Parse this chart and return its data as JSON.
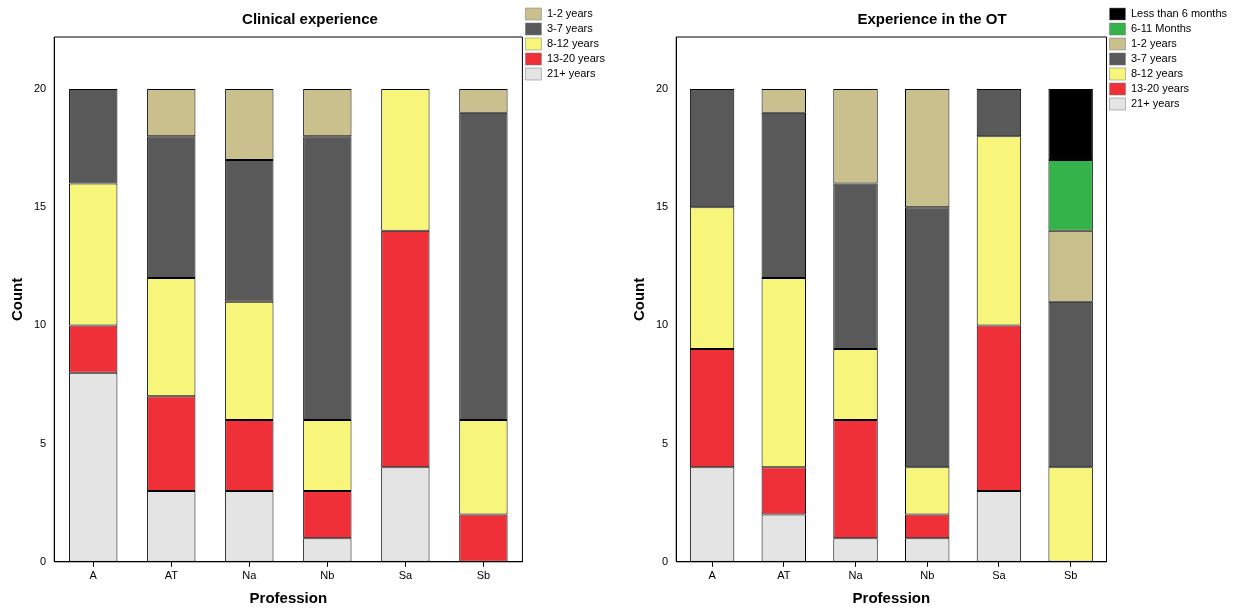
{
  "chart_data": [
    {
      "type": "bar",
      "title": "Clinical experience",
      "xlabel": "Profession",
      "ylabel": "Count",
      "stacked": true,
      "legend": "top right",
      "grid": false,
      "categories": [
        "A",
        "AT",
        "Na",
        "Nb",
        "Sa",
        "Sb"
      ],
      "ylim": [
        0,
        22.2
      ],
      "yticks": [
        0,
        5,
        10,
        15,
        20
      ],
      "series": [
        {
          "name": "21+ years",
          "color": "#e4e4e4",
          "values": [
            8,
            3,
            3,
            1,
            4,
            0
          ]
        },
        {
          "name": "13-20 years",
          "color": "#ef3038",
          "values": [
            2,
            4,
            3,
            2,
            10,
            2
          ]
        },
        {
          "name": "8-12 years",
          "color": "#f8f67a",
          "values": [
            6,
            5,
            5,
            3,
            6,
            4
          ]
        },
        {
          "name": "3-7 years",
          "color": "#595959",
          "values": [
            4,
            6,
            6,
            12,
            0,
            13
          ]
        },
        {
          "name": "1-2 years",
          "color": "#c9c08e",
          "values": [
            0,
            2,
            3,
            2,
            0,
            1
          ]
        }
      ]
    },
    {
      "type": "bar",
      "title": "Experience in the OT",
      "xlabel": "Profession",
      "ylabel": "Count",
      "stacked": true,
      "legend": "top right",
      "grid": false,
      "categories": [
        "A",
        "AT",
        "Na",
        "Nb",
        "Sa",
        "Sb"
      ],
      "ylim": [
        0,
        22.2
      ],
      "yticks": [
        0,
        5,
        10,
        15,
        20
      ],
      "series": [
        {
          "name": "21+ years",
          "color": "#e4e4e4",
          "values": [
            4,
            2,
            1,
            1,
            3,
            0
          ]
        },
        {
          "name": "13-20 years",
          "color": "#ef3038",
          "values": [
            5,
            2,
            5,
            1,
            7,
            0
          ]
        },
        {
          "name": "8-12 years",
          "color": "#f8f67a",
          "values": [
            6,
            8,
            3,
            2,
            8,
            4
          ]
        },
        {
          "name": "3-7 years",
          "color": "#595959",
          "values": [
            5,
            7,
            7,
            11,
            2,
            7
          ]
        },
        {
          "name": "1-2 years",
          "color": "#c9c08e",
          "values": [
            0,
            1,
            4,
            5,
            0,
            3
          ]
        },
        {
          "name": "6-11 Months",
          "color": "#33b34a",
          "values": [
            0,
            0,
            0,
            0,
            0,
            3
          ]
        },
        {
          "name": "Less than 6 months",
          "color": "#000000",
          "values": [
            0,
            0,
            0,
            0,
            0,
            3
          ]
        }
      ]
    }
  ]
}
